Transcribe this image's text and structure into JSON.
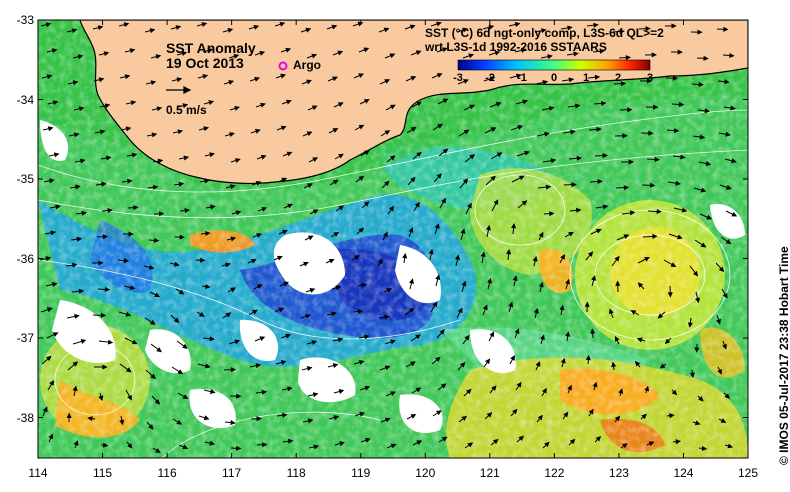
{
  "title": {
    "line1": "SST Anomaly",
    "line2": "19 Oct 2013"
  },
  "argo_legend": {
    "label": "Argo",
    "marker_color": "#e800e8"
  },
  "velocity_legend": {
    "label": "0.5 m/s"
  },
  "product": {
    "line1": "SST (°C) 6d ngt-only comp, L3S-6d QL>=2",
    "line2": "wrt L3S-1d 1992-2016 SSTAARS"
  },
  "colorbar": {
    "ticks": [
      "-3",
      "-2",
      "-1",
      "0",
      "1",
      "2",
      "3"
    ],
    "min": -3,
    "max": 3,
    "colors": [
      "#00008f",
      "#0040ff",
      "#00c0ff",
      "#40ff80",
      "#d0ff00",
      "#ffa000",
      "#ff2000",
      "#800000"
    ]
  },
  "axes": {
    "x_ticks": [
      "114",
      "115",
      "116",
      "117",
      "118",
      "119",
      "120",
      "121",
      "122",
      "123",
      "124",
      "125"
    ],
    "y_ticks": [
      "-33",
      "-34",
      "-35",
      "-36",
      "-37",
      "-38"
    ]
  },
  "credit": "© IMOS 05-Jul-2017 23:38 Hobart Time",
  "colors": {
    "land": "#f9c99f",
    "anomaly_warm": "#ffbf20",
    "anomaly_cool": "#2050e0",
    "anomaly_neutral": "#40d860",
    "cloud": "#ffffff"
  }
}
